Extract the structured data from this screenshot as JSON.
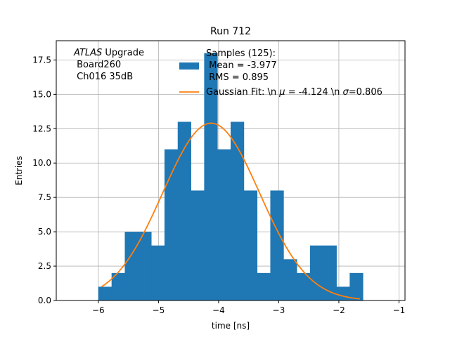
{
  "chart_data": {
    "type": "bar",
    "title": "Run 712",
    "xlabel": "time [ns]",
    "ylabel": "Entries",
    "xlim": [
      -6.7,
      -0.9
    ],
    "ylim": [
      0,
      18.9
    ],
    "grid": true,
    "xticks": [
      -6,
      -5,
      -4,
      -3,
      -2,
      -1
    ],
    "xtick_labels": [
      "−6",
      "−5",
      "−4",
      "−3",
      "−2",
      "−1"
    ],
    "yticks": [
      0.0,
      2.5,
      5.0,
      7.5,
      10.0,
      12.5,
      15.0,
      17.5
    ],
    "ytick_labels": [
      "0.0",
      "2.5",
      "5.0",
      "7.5",
      "10.0",
      "12.5",
      "15.0",
      "17.5"
    ],
    "histogram": {
      "name": "Samples (125):\n Mean = -3.977\n RMS = 0.895",
      "bin_edges": [
        -6.0,
        -5.78,
        -5.56,
        -5.34,
        -5.12,
        -4.9,
        -4.68,
        -4.46,
        -4.24,
        -4.02,
        -3.8,
        -3.58,
        -3.36,
        -3.14,
        -2.92,
        -2.7,
        -2.48,
        -2.26,
        -2.04,
        -1.82,
        -1.6
      ],
      "counts": [
        1,
        2,
        5,
        5,
        4,
        11,
        13,
        8,
        18,
        11,
        13,
        8,
        2,
        8,
        3,
        2,
        4,
        4,
        1,
        2
      ],
      "color": "#1f77b4"
    },
    "fit": {
      "name": "Gaussian Fit: \\n $\\mu$ = -4.124 \\n $\\sigma$=0.806",
      "label_plain": "Gaussian Fit: \\n μ = -4.124 \\n σ=0.806",
      "mu": -4.124,
      "sigma": 0.806,
      "amplitude": 12.9,
      "x_range": [
        -5.95,
        -1.65
      ],
      "color": "#ff7f0e"
    },
    "annotation": {
      "italic": "ATLAS",
      "rest": " Upgrade",
      "line2": " Board260",
      "line3": " Ch016 35dB"
    },
    "legend": {
      "placement": "top-right",
      "hist_lines": [
        "Samples (125):",
        " Mean = -3.977",
        " RMS = 0.895"
      ],
      "fit_prefix": "Gaussian Fit: \\n ",
      "fit_mu_sym": "μ",
      "fit_mid": " = -4.124 \\n ",
      "fit_sigma_sym": "σ",
      "fit_suffix": "=0.806"
    }
  }
}
